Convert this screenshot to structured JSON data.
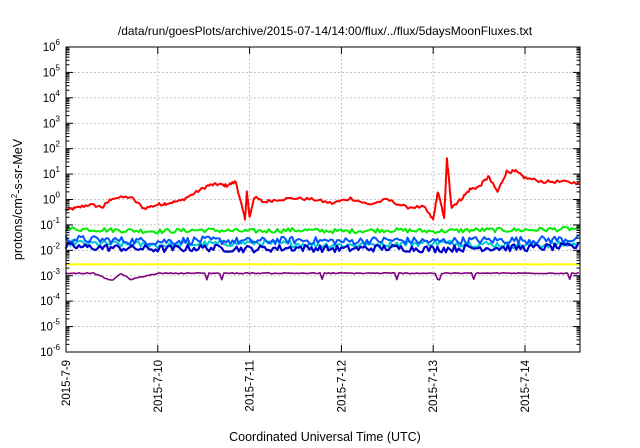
{
  "chart_data": {
    "type": "line",
    "title": "/data/run/goesPlots/archive/2015-07-14/14:00/flux/../flux/5daysMoonFluxes.txt",
    "xlabel": "Coordinated Universal Time (UTC)",
    "ylabel": "protons/cm2-s-sr-MeV",
    "ylabel_parts": [
      "protons/cm",
      "2",
      "-s-sr-MeV"
    ],
    "yscale": "log",
    "ylim_exponent": [
      -6,
      6
    ],
    "ytick_base": "10",
    "ytick_exponents": [
      "6",
      "5",
      "4",
      "3",
      "2",
      "1",
      "0",
      "-1",
      "-2",
      "-3",
      "-4",
      "-5",
      "-6"
    ],
    "xlim_days": [
      "2015-7-9",
      "2015-7-14 14:00"
    ],
    "xticks": [
      "2015-7-9",
      "2015-7-10",
      "2015-7-11",
      "2015-7-12",
      "2015-7-13",
      "2015-7-14"
    ],
    "grid": true,
    "series": [
      {
        "color": "#ff0000",
        "x_days": [
          0.0,
          0.1,
          0.25,
          0.4,
          0.5,
          0.7,
          0.85,
          1.0,
          1.1,
          1.25,
          1.4,
          1.55,
          1.65,
          1.75,
          1.85,
          1.95,
          1.97,
          2.0,
          2.05,
          2.15,
          2.3,
          2.5,
          2.7,
          2.9,
          3.1,
          3.3,
          3.5,
          3.7,
          3.9,
          4.0,
          4.05,
          4.12,
          4.15,
          4.2,
          4.3,
          4.4,
          4.5,
          4.6,
          4.7,
          4.8,
          4.9,
          5.0,
          5.2,
          5.4,
          5.58
        ],
        "y_log10": [
          -0.4,
          -0.35,
          -0.2,
          -0.3,
          0.05,
          0.1,
          -0.35,
          -0.2,
          -0.15,
          -0.05,
          0.25,
          0.55,
          0.6,
          0.55,
          0.7,
          -0.8,
          0.3,
          -0.7,
          0.1,
          -0.1,
          0.0,
          0.05,
          0.0,
          -0.15,
          0.05,
          -0.2,
          0.0,
          -0.3,
          -0.3,
          -0.8,
          0.3,
          -0.7,
          1.6,
          -0.3,
          0.0,
          0.4,
          0.5,
          0.9,
          0.3,
          1.1,
          1.1,
          0.85,
          0.7,
          0.7,
          0.65
        ]
      },
      {
        "color": "#00ee00",
        "x_days": [
          0.0,
          0.5,
          1.0,
          1.5,
          2.0,
          2.5,
          3.0,
          3.5,
          4.0,
          4.5,
          5.0,
          5.58
        ],
        "y_log10": [
          -1.15,
          -1.2,
          -1.25,
          -1.2,
          -1.25,
          -1.2,
          -1.25,
          -1.2,
          -1.25,
          -1.2,
          -1.2,
          -1.15
        ]
      },
      {
        "color": "#00cccc",
        "x_days": [
          0.0,
          0.5,
          1.0,
          1.5,
          2.0,
          2.5,
          3.0,
          3.5,
          4.0,
          4.5,
          5.0,
          5.58
        ],
        "y_log10": [
          -1.7,
          -1.75,
          -1.8,
          -1.75,
          -1.7,
          -1.75,
          -1.8,
          -1.75,
          -1.7,
          -1.75,
          -1.8,
          -1.75
        ]
      },
      {
        "color": "#0055ff",
        "x_days": [
          0.0,
          0.5,
          1.0,
          1.5,
          2.0,
          2.5,
          3.0,
          3.5,
          4.0,
          4.5,
          5.0,
          5.58
        ],
        "y_log10": [
          -1.55,
          -1.6,
          -1.65,
          -1.6,
          -1.65,
          -1.6,
          -1.65,
          -1.6,
          -1.65,
          -1.6,
          -1.6,
          -1.55
        ]
      },
      {
        "color": "#0000cc",
        "x_days": [
          0.0,
          0.5,
          1.0,
          1.5,
          2.0,
          2.5,
          3.0,
          3.5,
          4.0,
          4.5,
          5.0,
          5.58
        ],
        "y_log10": [
          -1.85,
          -1.9,
          -1.95,
          -1.9,
          -1.95,
          -1.9,
          -1.95,
          -1.9,
          -1.95,
          -1.9,
          -1.9,
          -1.85
        ]
      },
      {
        "color": "#ffff00",
        "x_days": [
          0.0,
          1.0,
          2.0,
          3.0,
          4.0,
          5.0,
          5.58
        ],
        "y_log10": [
          -2.55,
          -2.55,
          -2.55,
          -2.55,
          -2.55,
          -2.55,
          -2.55
        ]
      },
      {
        "color": "#800080",
        "x_days": [
          0.0,
          0.3,
          0.5,
          0.6,
          0.7,
          1.0,
          2.0,
          3.0,
          4.0,
          5.0,
          5.58
        ],
        "y_log10": [
          -2.9,
          -2.9,
          -3.2,
          -2.9,
          -3.15,
          -2.9,
          -2.9,
          -2.9,
          -2.9,
          -2.9,
          -2.9
        ]
      }
    ]
  }
}
